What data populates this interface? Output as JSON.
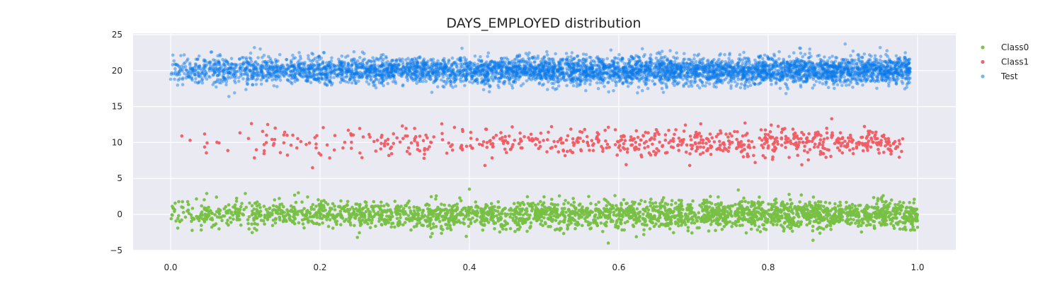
{
  "chart_data": {
    "type": "scatter",
    "title": "DAYS_EMPLOYED distribution",
    "xlabel": "",
    "ylabel": "",
    "xlim": [
      -0.05,
      1.05
    ],
    "ylim": [
      -5,
      25
    ],
    "x_ticks": [
      0.0,
      0.2,
      0.4,
      0.6,
      0.8,
      1.0
    ],
    "x_tick_labels": [
      "0.0",
      "0.2",
      "0.4",
      "0.6",
      "0.8",
      "1.0"
    ],
    "y_ticks": [
      -5,
      0,
      5,
      10,
      15,
      20,
      25
    ],
    "y_tick_labels": [
      "−5",
      "0",
      "5",
      "10",
      "15",
      "20",
      "25"
    ],
    "grid": true,
    "legend_position": "upper-right-outside",
    "series": [
      {
        "name": "Class0",
        "color": "#77c043",
        "alpha": 0.95,
        "y_center": 0,
        "y_spread": 1.0,
        "x_range": [
          0.0,
          1.0
        ],
        "point_count": 2600,
        "sample_points": [
          [
            0.005,
            0.4
          ],
          [
            0.1,
            2.9
          ],
          [
            0.171,
            3.0
          ],
          [
            0.25,
            -3.2
          ],
          [
            0.4,
            3.5
          ],
          [
            0.586,
            -4.0
          ],
          [
            0.76,
            3.4
          ],
          [
            0.86,
            -3.6
          ],
          [
            0.995,
            1.6
          ],
          [
            1.0,
            -1.8
          ]
        ]
      },
      {
        "name": "Class1",
        "color": "#f15b62",
        "alpha": 0.95,
        "y_center": 10,
        "y_spread": 1.0,
        "x_range": [
          0.01,
          0.98
        ],
        "point_count": 700,
        "sample_points": [
          [
            0.015,
            10.9
          ],
          [
            0.13,
            12.5
          ],
          [
            0.19,
            6.5
          ],
          [
            0.38,
            12.1
          ],
          [
            0.51,
            12.2
          ],
          [
            0.695,
            6.8
          ],
          [
            0.885,
            13.3
          ],
          [
            0.845,
            6.9
          ],
          [
            0.98,
            10.5
          ]
        ]
      },
      {
        "name": "Test",
        "color": "#0a7ae8",
        "alpha": 0.45,
        "y_center": 20,
        "y_spread": 1.0,
        "x_range": [
          0.0,
          0.99
        ],
        "point_count": 5200,
        "sample_points": [
          [
            0.0,
            18.8
          ],
          [
            0.055,
            22.6
          ],
          [
            0.078,
            16.4
          ],
          [
            0.12,
            23.0
          ],
          [
            0.39,
            23.1
          ],
          [
            0.625,
            16.9
          ],
          [
            0.903,
            23.7
          ],
          [
            0.99,
            19.8
          ]
        ]
      }
    ]
  }
}
